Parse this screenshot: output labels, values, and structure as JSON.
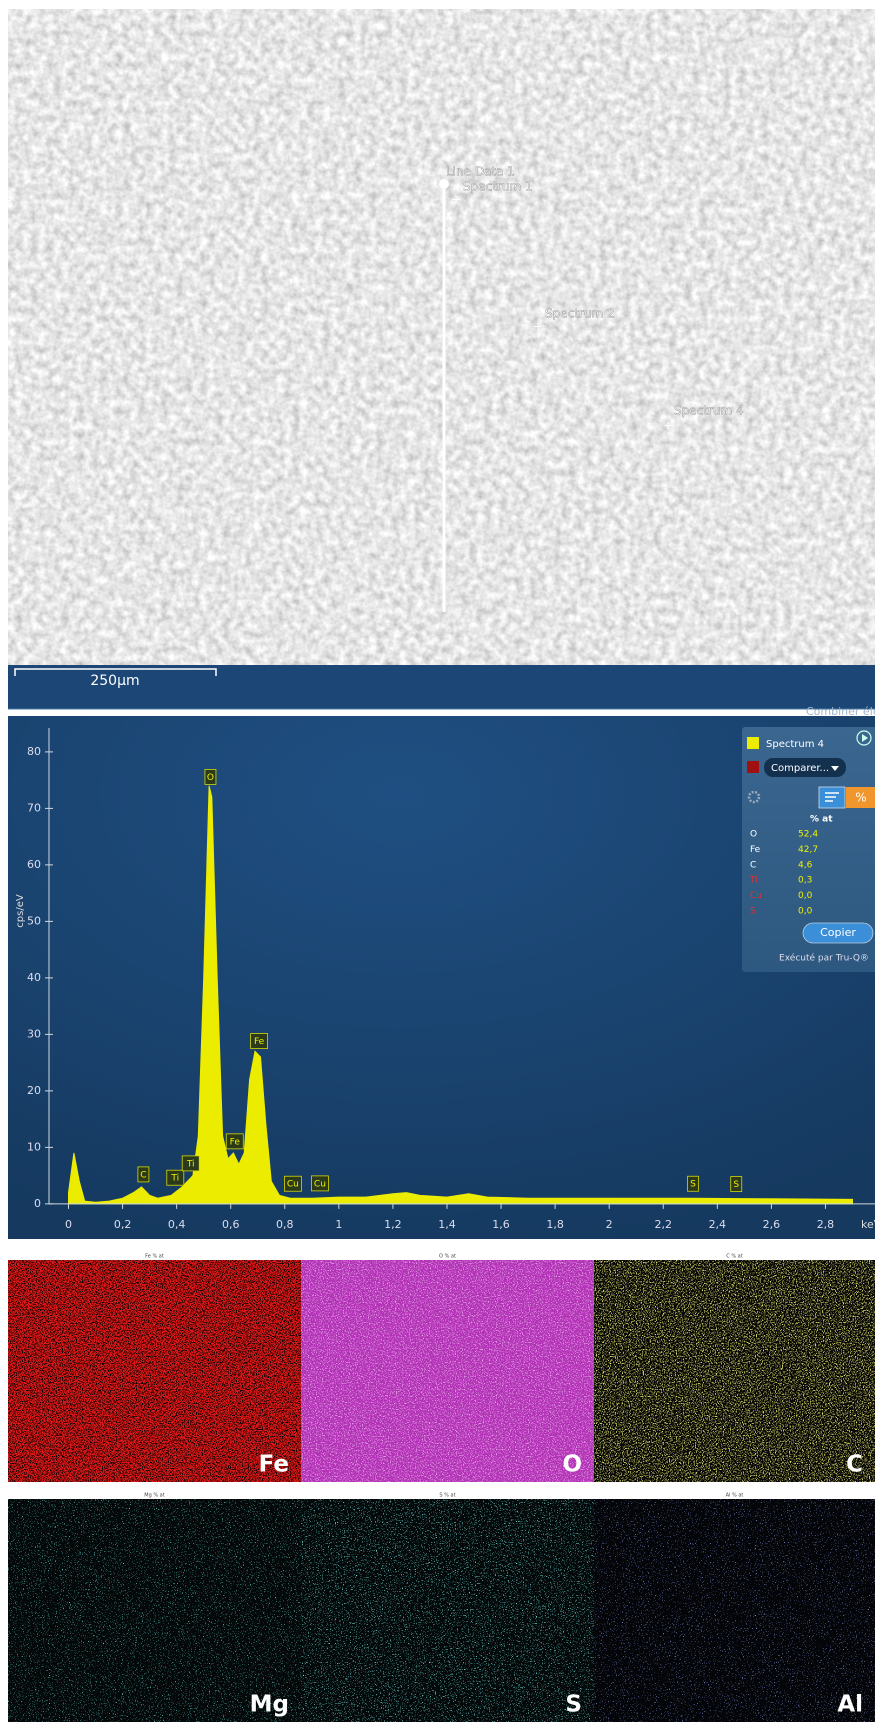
{
  "sem_image": {
    "line_label": "Line Data 1",
    "points": [
      "Spectrum 1",
      "Spectrum 2",
      "Spectrum 4"
    ],
    "scale_bar": "250µm"
  },
  "toolbar": {
    "title": "Combiner éléments"
  },
  "chart_data": {
    "type": "area",
    "x": [
      0,
      0.02,
      0.04,
      0.06,
      0.1,
      0.15,
      0.2,
      0.24,
      0.27,
      0.3,
      0.33,
      0.38,
      0.42,
      0.46,
      0.48,
      0.5,
      0.52,
      0.53,
      0.55,
      0.57,
      0.59,
      0.61,
      0.63,
      0.65,
      0.67,
      0.69,
      0.71,
      0.73,
      0.75,
      0.78,
      0.82,
      0.9,
      1,
      1.1,
      1.2,
      1.25,
      1.3,
      1.4,
      1.48,
      1.55,
      1.7,
      2,
      2.3,
      2.6,
      2.9
    ],
    "series": [
      {
        "name": "Spectrum 4",
        "color": "#ecec00",
        "values": [
          2,
          9,
          4,
          0.5,
          0.3,
          0.5,
          1,
          2,
          3,
          1.5,
          1,
          1.5,
          3,
          5,
          12,
          40,
          74,
          72,
          40,
          12,
          8,
          9,
          7,
          9,
          22,
          27,
          26,
          14,
          4,
          1.5,
          1,
          1,
          1.2,
          1.2,
          1.8,
          2,
          1.5,
          1.2,
          1.8,
          1.2,
          1,
          1,
          1,
          0.9,
          0.8
        ]
      }
    ],
    "xlim": [
      -0.05,
      2.95
    ],
    "ylim": [
      -2.5,
      86
    ],
    "xticks": [
      0,
      {
        "value": 0.2,
        "label": "0,2"
      },
      {
        "value": 0.4,
        "label": "0,4"
      },
      {
        "value": 0.6,
        "label": "0,6"
      },
      {
        "value": 0.8,
        "label": "0,8"
      },
      1,
      {
        "value": 1.2,
        "label": "1,2"
      },
      {
        "value": 1.4,
        "label": "1,4"
      },
      {
        "value": 1.6,
        "label": "1,6"
      },
      {
        "value": 1.8,
        "label": "1,8"
      },
      2,
      {
        "value": 2.2,
        "label": "2,2"
      },
      {
        "value": 2.4,
        "label": "2,4"
      },
      {
        "value": 2.6,
        "label": "2,6"
      },
      {
        "value": 2.8,
        "label": "2,8"
      }
    ],
    "yticks": [
      0,
      10,
      20,
      30,
      40,
      50,
      60,
      70,
      80
    ],
    "y_label": "cps/eV",
    "x_unit": "keV",
    "peak_labels": [
      {
        "label": "C",
        "x": 0.277
      },
      {
        "label": "Ti",
        "x": 0.395
      },
      {
        "label": "Ti",
        "x": 0.452
      },
      {
        "label": "O",
        "x": 0.525
      },
      {
        "label": "Fe",
        "x": 0.615
      },
      {
        "label": "Fe",
        "x": 0.705
      },
      {
        "label": "Cu",
        "x": 0.83
      },
      {
        "label": "Cu",
        "x": 0.93
      },
      {
        "label": "S",
        "x": 2.31
      },
      {
        "label": "S",
        "x": 2.47
      }
    ]
  },
  "results_panel": {
    "compare_button": "Comparer...",
    "column_header": "% at",
    "rows": [
      [
        "O",
        "52,4"
      ],
      [
        "Fe",
        "42,7"
      ],
      [
        "C",
        "4,6"
      ],
      [
        "Ti",
        "0,3"
      ],
      [
        "Cu",
        "0,0"
      ],
      [
        "S",
        "0,0"
      ]
    ],
    "copy_button": "Copier",
    "footer": "Exécuté par Tru-Q®"
  },
  "maps": [
    {
      "title": "Fe % at",
      "label": "Fe",
      "background": "#e01818",
      "color": "#000000"
    },
    {
      "title": "O % at",
      "label": "O",
      "background": "#b232b6",
      "color": "#cf5ad2"
    },
    {
      "title": "C % at",
      "label": "C",
      "background": "#060606",
      "color": "#a9a823"
    },
    {
      "title": "Mg % at",
      "label": "Mg",
      "background": "#040808",
      "color": "#1b8c8c"
    },
    {
      "title": "S % at",
      "label": "S",
      "background": "#040808",
      "color": "#22a6a6"
    },
    {
      "title": "Al % at",
      "label": "Al",
      "background": "#040508",
      "color": "#3545a8"
    }
  ]
}
